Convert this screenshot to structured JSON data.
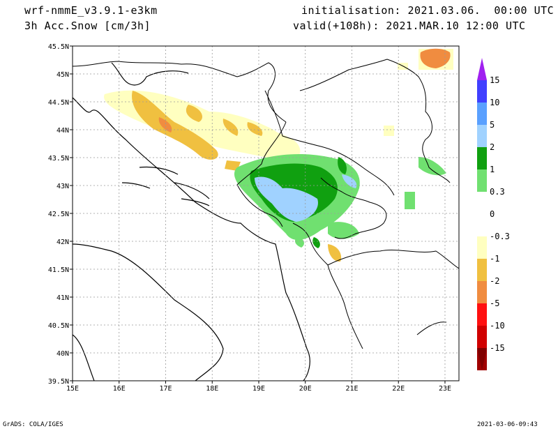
{
  "header": {
    "model": "wrf-nmmE_v3.9.1-e3km",
    "variable": "3h Acc.Snow [cm/3h]",
    "initialisation": "initialisation: 2021.03.06.  00:00 UTC",
    "valid": "valid(+108h): 2021.MAR.10 12:00 UTC"
  },
  "footer": {
    "credit": "GrADS: COLA/IGES",
    "timestamp": "2021-03-06-09:43"
  },
  "map": {
    "lon_labels": [
      "15E",
      "16E",
      "17E",
      "18E",
      "19E",
      "20E",
      "21E",
      "22E",
      "23E"
    ],
    "lat_labels": [
      "45.5N",
      "45N",
      "44.5N",
      "44N",
      "43.5N",
      "43N",
      "42.5N",
      "42N",
      "41.5N",
      "41N",
      "40.5N",
      "40N",
      "39.5N"
    ],
    "lon_range": [
      15,
      23.3
    ],
    "lat_range": [
      39.5,
      45.5
    ],
    "grid": true
  },
  "colorbar": {
    "labels": [
      "15",
      "10",
      "5",
      "2",
      "1",
      "0.3",
      "0",
      "-0.3",
      "-1",
      "-2",
      "-5",
      "-10",
      "-15"
    ],
    "colors": [
      "#4040ff",
      "#5aa0ff",
      "#a0d2ff",
      "#10a010",
      "#70e070",
      "#ffffff",
      "#ffffff",
      "#ffffc0",
      "#f0c040",
      "#f08c40",
      "#ff1010",
      "#d00000",
      "#a00000"
    ],
    "top_arrow_color": "#a020f0",
    "bottom_arrow_color": "#800000"
  }
}
